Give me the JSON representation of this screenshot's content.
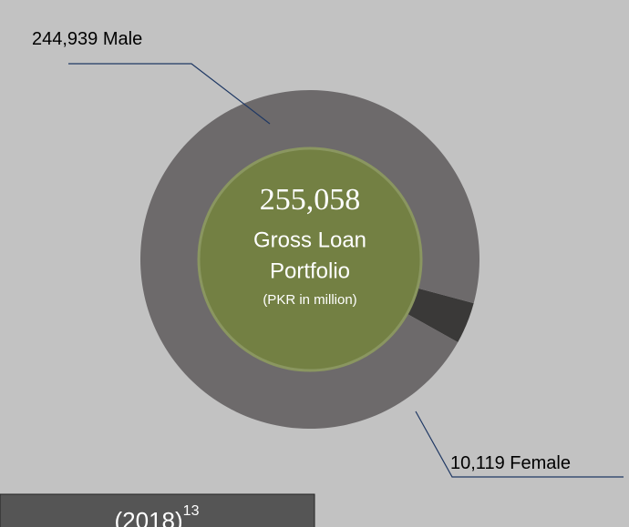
{
  "chart_data": {
    "type": "donut",
    "categories": [
      "Male",
      "Female"
    ],
    "values": [
      244939,
      10119
    ],
    "value_labels": [
      "244,939",
      "10,119"
    ],
    "colors": [
      "#6d6a6b",
      "#3a3938"
    ],
    "center_color": "#738043",
    "center_value_label": "255,058",
    "center_title_lines": [
      "Gross Loan",
      "Portfolio"
    ],
    "center_note": "(PKR in million)",
    "footer_text": "(2018)",
    "footer_note": "13"
  }
}
